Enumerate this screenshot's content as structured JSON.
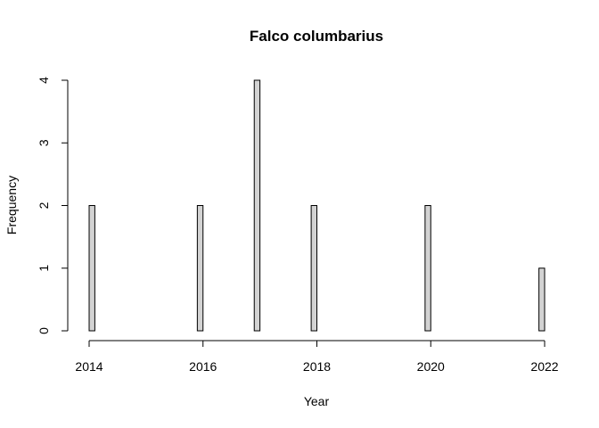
{
  "chart_data": {
    "type": "bar",
    "title": "Falco columbarius",
    "xlabel": "Year",
    "ylabel": "Frequency",
    "x_ticks": [
      "2014",
      "2016",
      "2018",
      "2020",
      "2022"
    ],
    "y_ticks": [
      "0",
      "1",
      "2",
      "3",
      "4"
    ],
    "xlim": [
      2014,
      2022
    ],
    "ylim": [
      0,
      4
    ],
    "bin_width": 0.1,
    "bins": [
      {
        "start": 2014.0,
        "end": 2014.1,
        "count": 2
      },
      {
        "start": 2015.9,
        "end": 2016.0,
        "count": 2
      },
      {
        "start": 2016.9,
        "end": 2017.0,
        "count": 4
      },
      {
        "start": 2017.9,
        "end": 2018.0,
        "count": 2
      },
      {
        "start": 2019.9,
        "end": 2020.0,
        "count": 2
      },
      {
        "start": 2021.9,
        "end": 2022.0,
        "count": 1
      }
    ],
    "bar_color": "#d3d3d3",
    "grid": false
  }
}
